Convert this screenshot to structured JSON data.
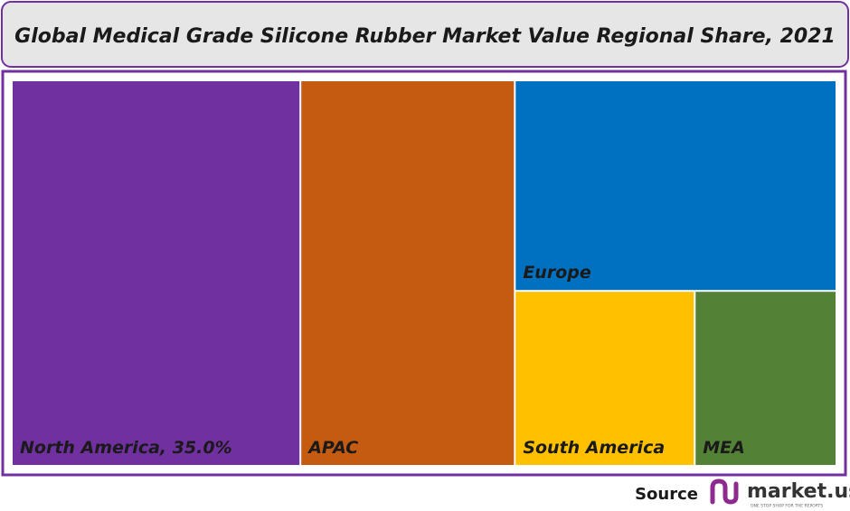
{
  "chart_data": {
    "type": "treemap",
    "title": "Global Medical Grade Silicone Rubber Market Value Regional Share, 2021",
    "categories": [
      "North America, 35.0%",
      "APAC",
      "Europe",
      "South America",
      "MEA"
    ],
    "values": [
      35.0,
      26.0,
      21.3,
      9.9,
      7.8
    ],
    "colors": [
      "#7030a0",
      "#c55a11",
      "#0070c0",
      "#ffc000",
      "#538135"
    ]
  },
  "footer": {
    "source": "Source",
    "brand": "market.us",
    "tagline": "ONE STOP SHOP FOR THE REPORTS"
  }
}
